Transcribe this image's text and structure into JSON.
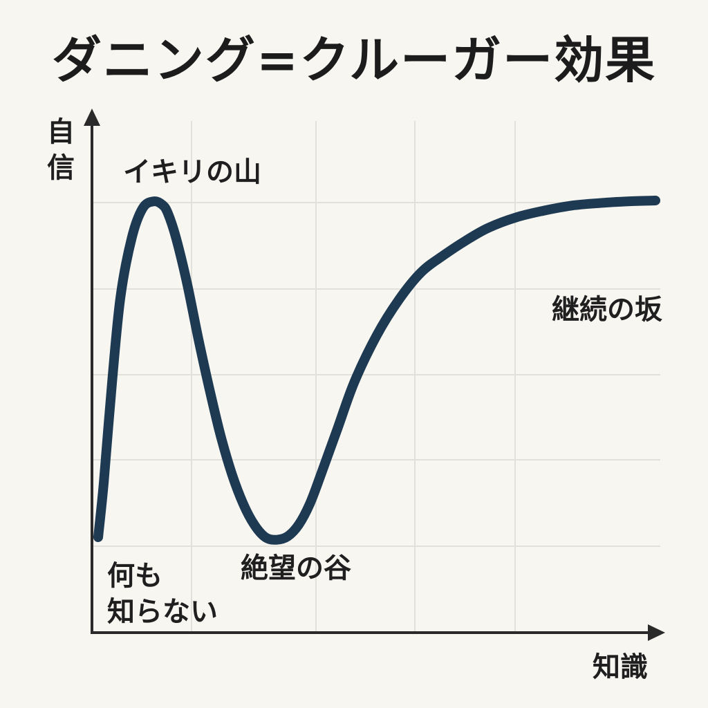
{
  "title": "ダニング=クルーガー効果",
  "chart_data": {
    "type": "line",
    "title": "ダニング=クルーガー効果",
    "xlabel": "知識",
    "ylabel": "自信",
    "xlim": [
      0,
      100
    ],
    "ylim": [
      0,
      100
    ],
    "grid": true,
    "colors": {
      "line": "#1e3a52",
      "grid": "#e2e0db",
      "axis": "#2a2a2a"
    },
    "series": [
      {
        "x": [
          0,
          1,
          2.5,
          4,
          6,
          8,
          10,
          11.5,
          12.5,
          14,
          16,
          18,
          20,
          22,
          24,
          26,
          28,
          30,
          32,
          34,
          36,
          38,
          40,
          43,
          46,
          50,
          54,
          58,
          62,
          66,
          70,
          75,
          80,
          85,
          90,
          95,
          100
        ],
        "y": [
          13,
          26,
          50,
          70,
          84,
          91.2,
          92.8,
          92,
          90,
          84,
          73,
          60,
          48,
          37,
          28,
          21,
          16,
          13,
          12.4,
          13.2,
          16,
          21,
          28,
          39,
          50,
          61,
          69.5,
          76,
          80,
          83.5,
          86.5,
          89,
          90.6,
          91.8,
          92.4,
          92.8,
          93
        ]
      }
    ],
    "annotations": [
      {
        "text": "イキリの山"
      },
      {
        "text": "何も"
      },
      {
        "text": "知らない"
      },
      {
        "text": "絶望の谷"
      },
      {
        "text": "継続の坂"
      }
    ]
  }
}
